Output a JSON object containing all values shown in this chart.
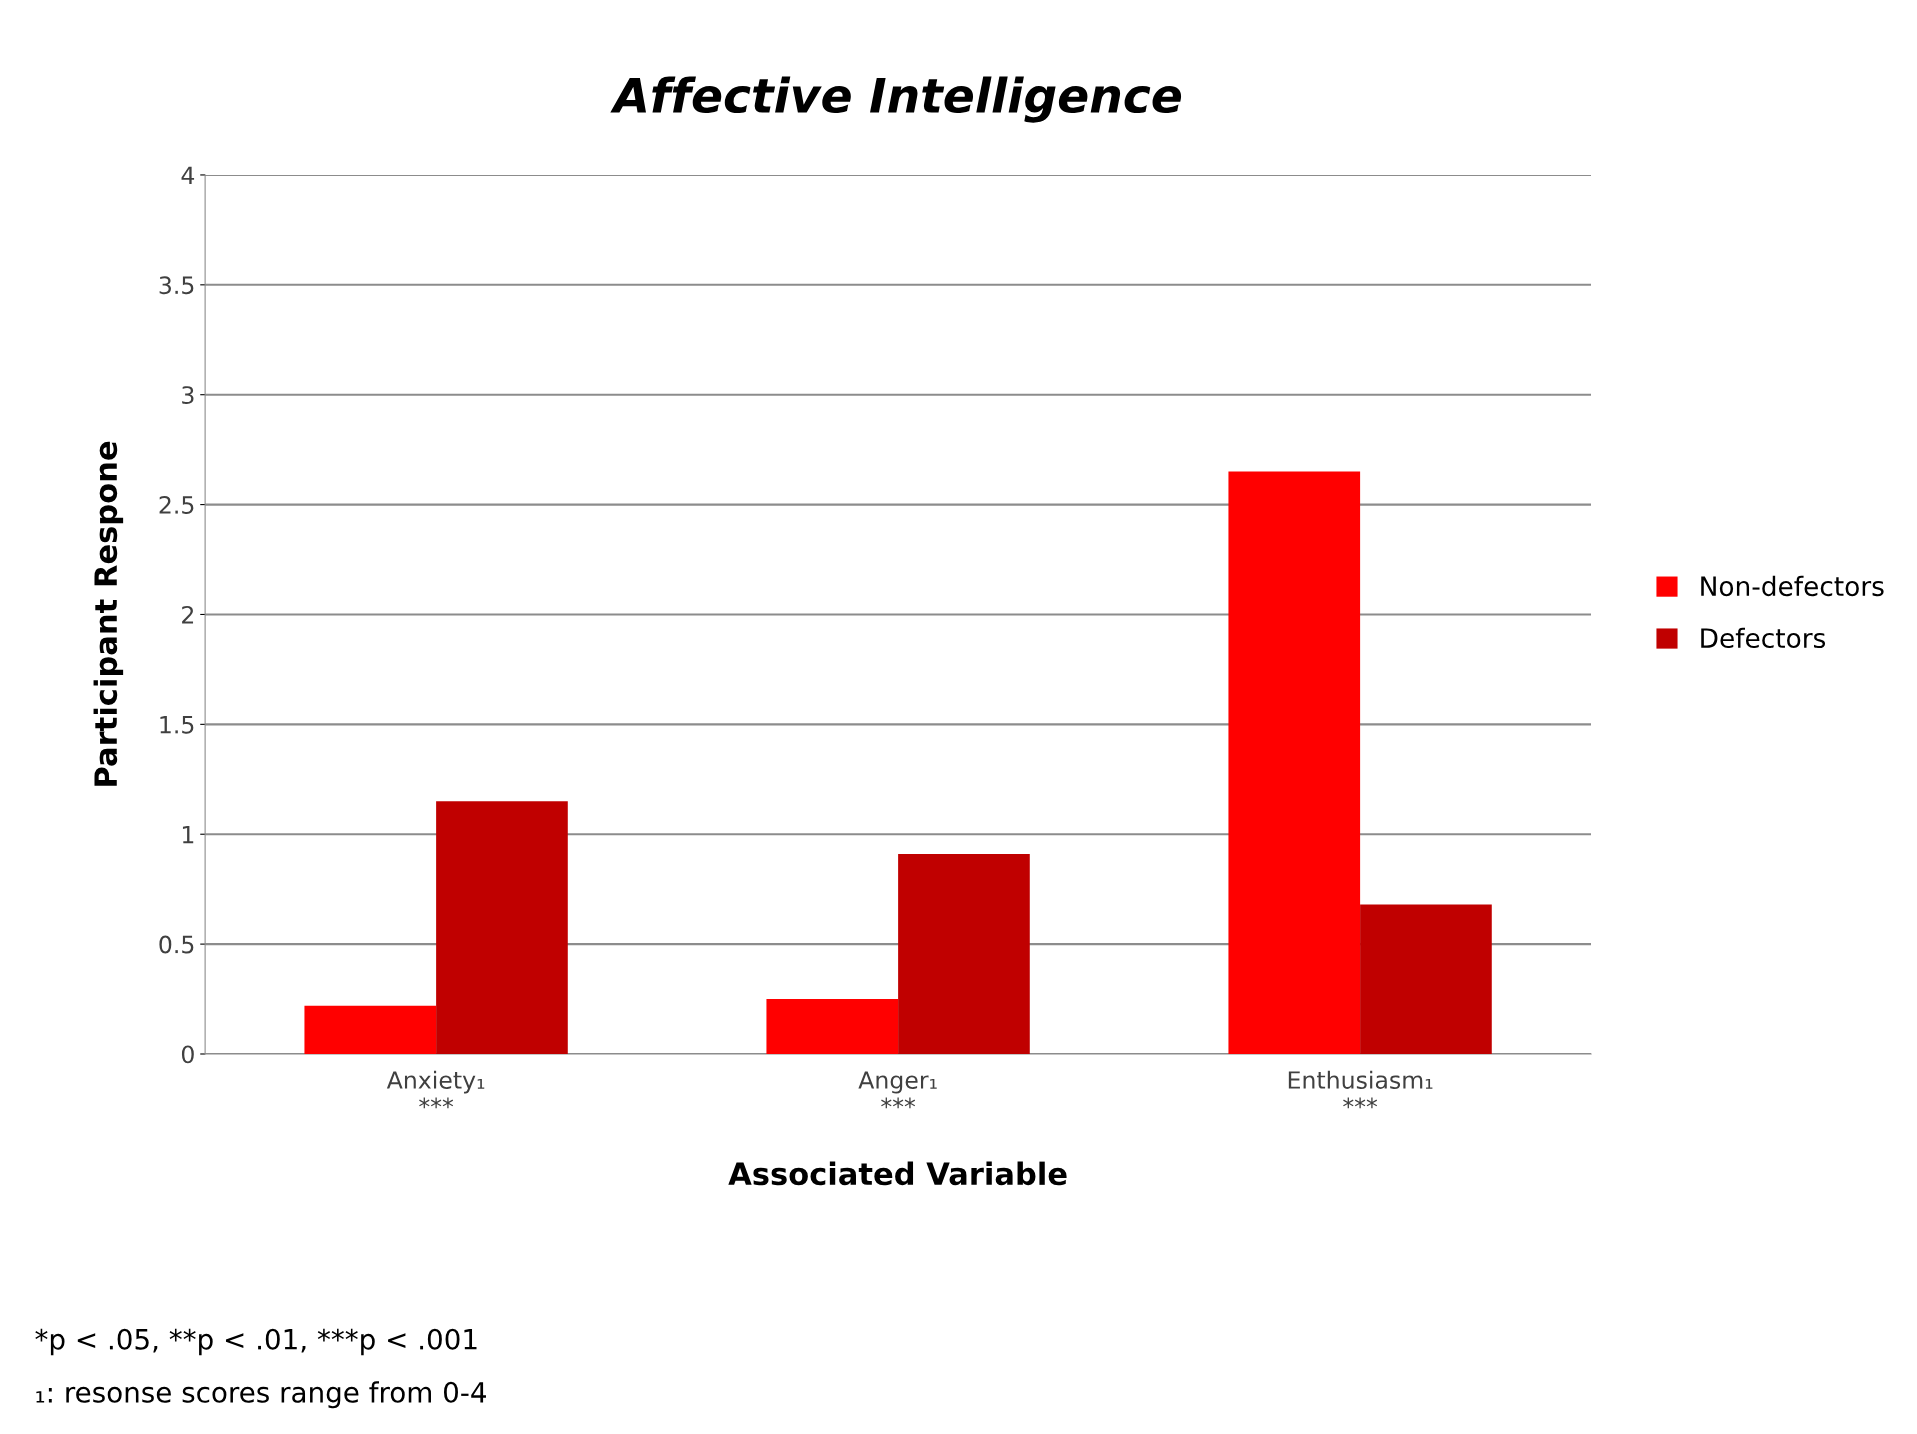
{
  "chart_data": {
    "type": "bar",
    "title": "Affective Intelligence",
    "xlabel": "Associated Variable",
    "ylabel": "Participant Respone",
    "categories": [
      "Anxiety₁\n***",
      "Anger₁\n***",
      "Enthusiasm₁\n***"
    ],
    "series": [
      {
        "name": "Non-defectors",
        "color": "#ff0000",
        "values": [
          0.22,
          0.25,
          2.65
        ]
      },
      {
        "name": "Defectors",
        "color": "#c00000",
        "values": [
          1.15,
          0.91,
          0.68
        ]
      }
    ],
    "ylim": [
      0,
      4
    ],
    "yticks": [
      0,
      0.5,
      1,
      1.5,
      2,
      2.5,
      3,
      3.5,
      4
    ],
    "grid": "y",
    "legend": "right",
    "annotations": [
      "*p < .05, **p < .01, ***p < .001",
      "₁: resonse scores range from 0-4"
    ]
  }
}
